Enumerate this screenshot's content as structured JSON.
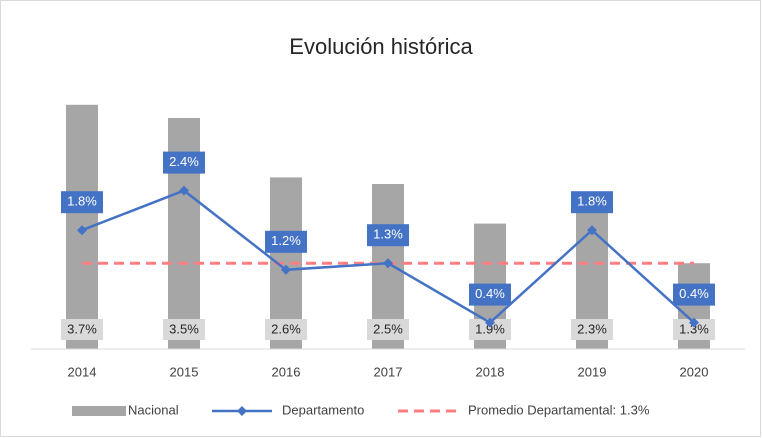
{
  "chart_data": {
    "type": "bar-line",
    "title": "Evolución histórica",
    "categories": [
      "2014",
      "2015",
      "2016",
      "2017",
      "2018",
      "2019",
      "2020"
    ],
    "ylim": [
      0,
      4
    ],
    "series": [
      {
        "name": "Nacional",
        "kind": "bar",
        "color": "#a6a6a6",
        "label_color": "#d9d9d9",
        "values": [
          3.7,
          3.5,
          2.6,
          2.5,
          1.9,
          2.3,
          1.3
        ],
        "value_labels": [
          "3.7%",
          "3.5%",
          "2.6%",
          "2.5%",
          "1.9%",
          "2.3%",
          "1.3%"
        ]
      },
      {
        "name": "Departamento",
        "kind": "line",
        "color": "#4472c4",
        "values": [
          1.8,
          2.4,
          1.2,
          1.3,
          0.4,
          1.8,
          0.4
        ],
        "value_labels": [
          "1.8%",
          "2.4%",
          "1.2%",
          "1.3%",
          "0.4%",
          "1.8%",
          "0.4%"
        ]
      }
    ],
    "average": {
      "name": "Promedio Departamental: 1.3%",
      "value": 1.3,
      "color": "#ff7c80"
    }
  }
}
